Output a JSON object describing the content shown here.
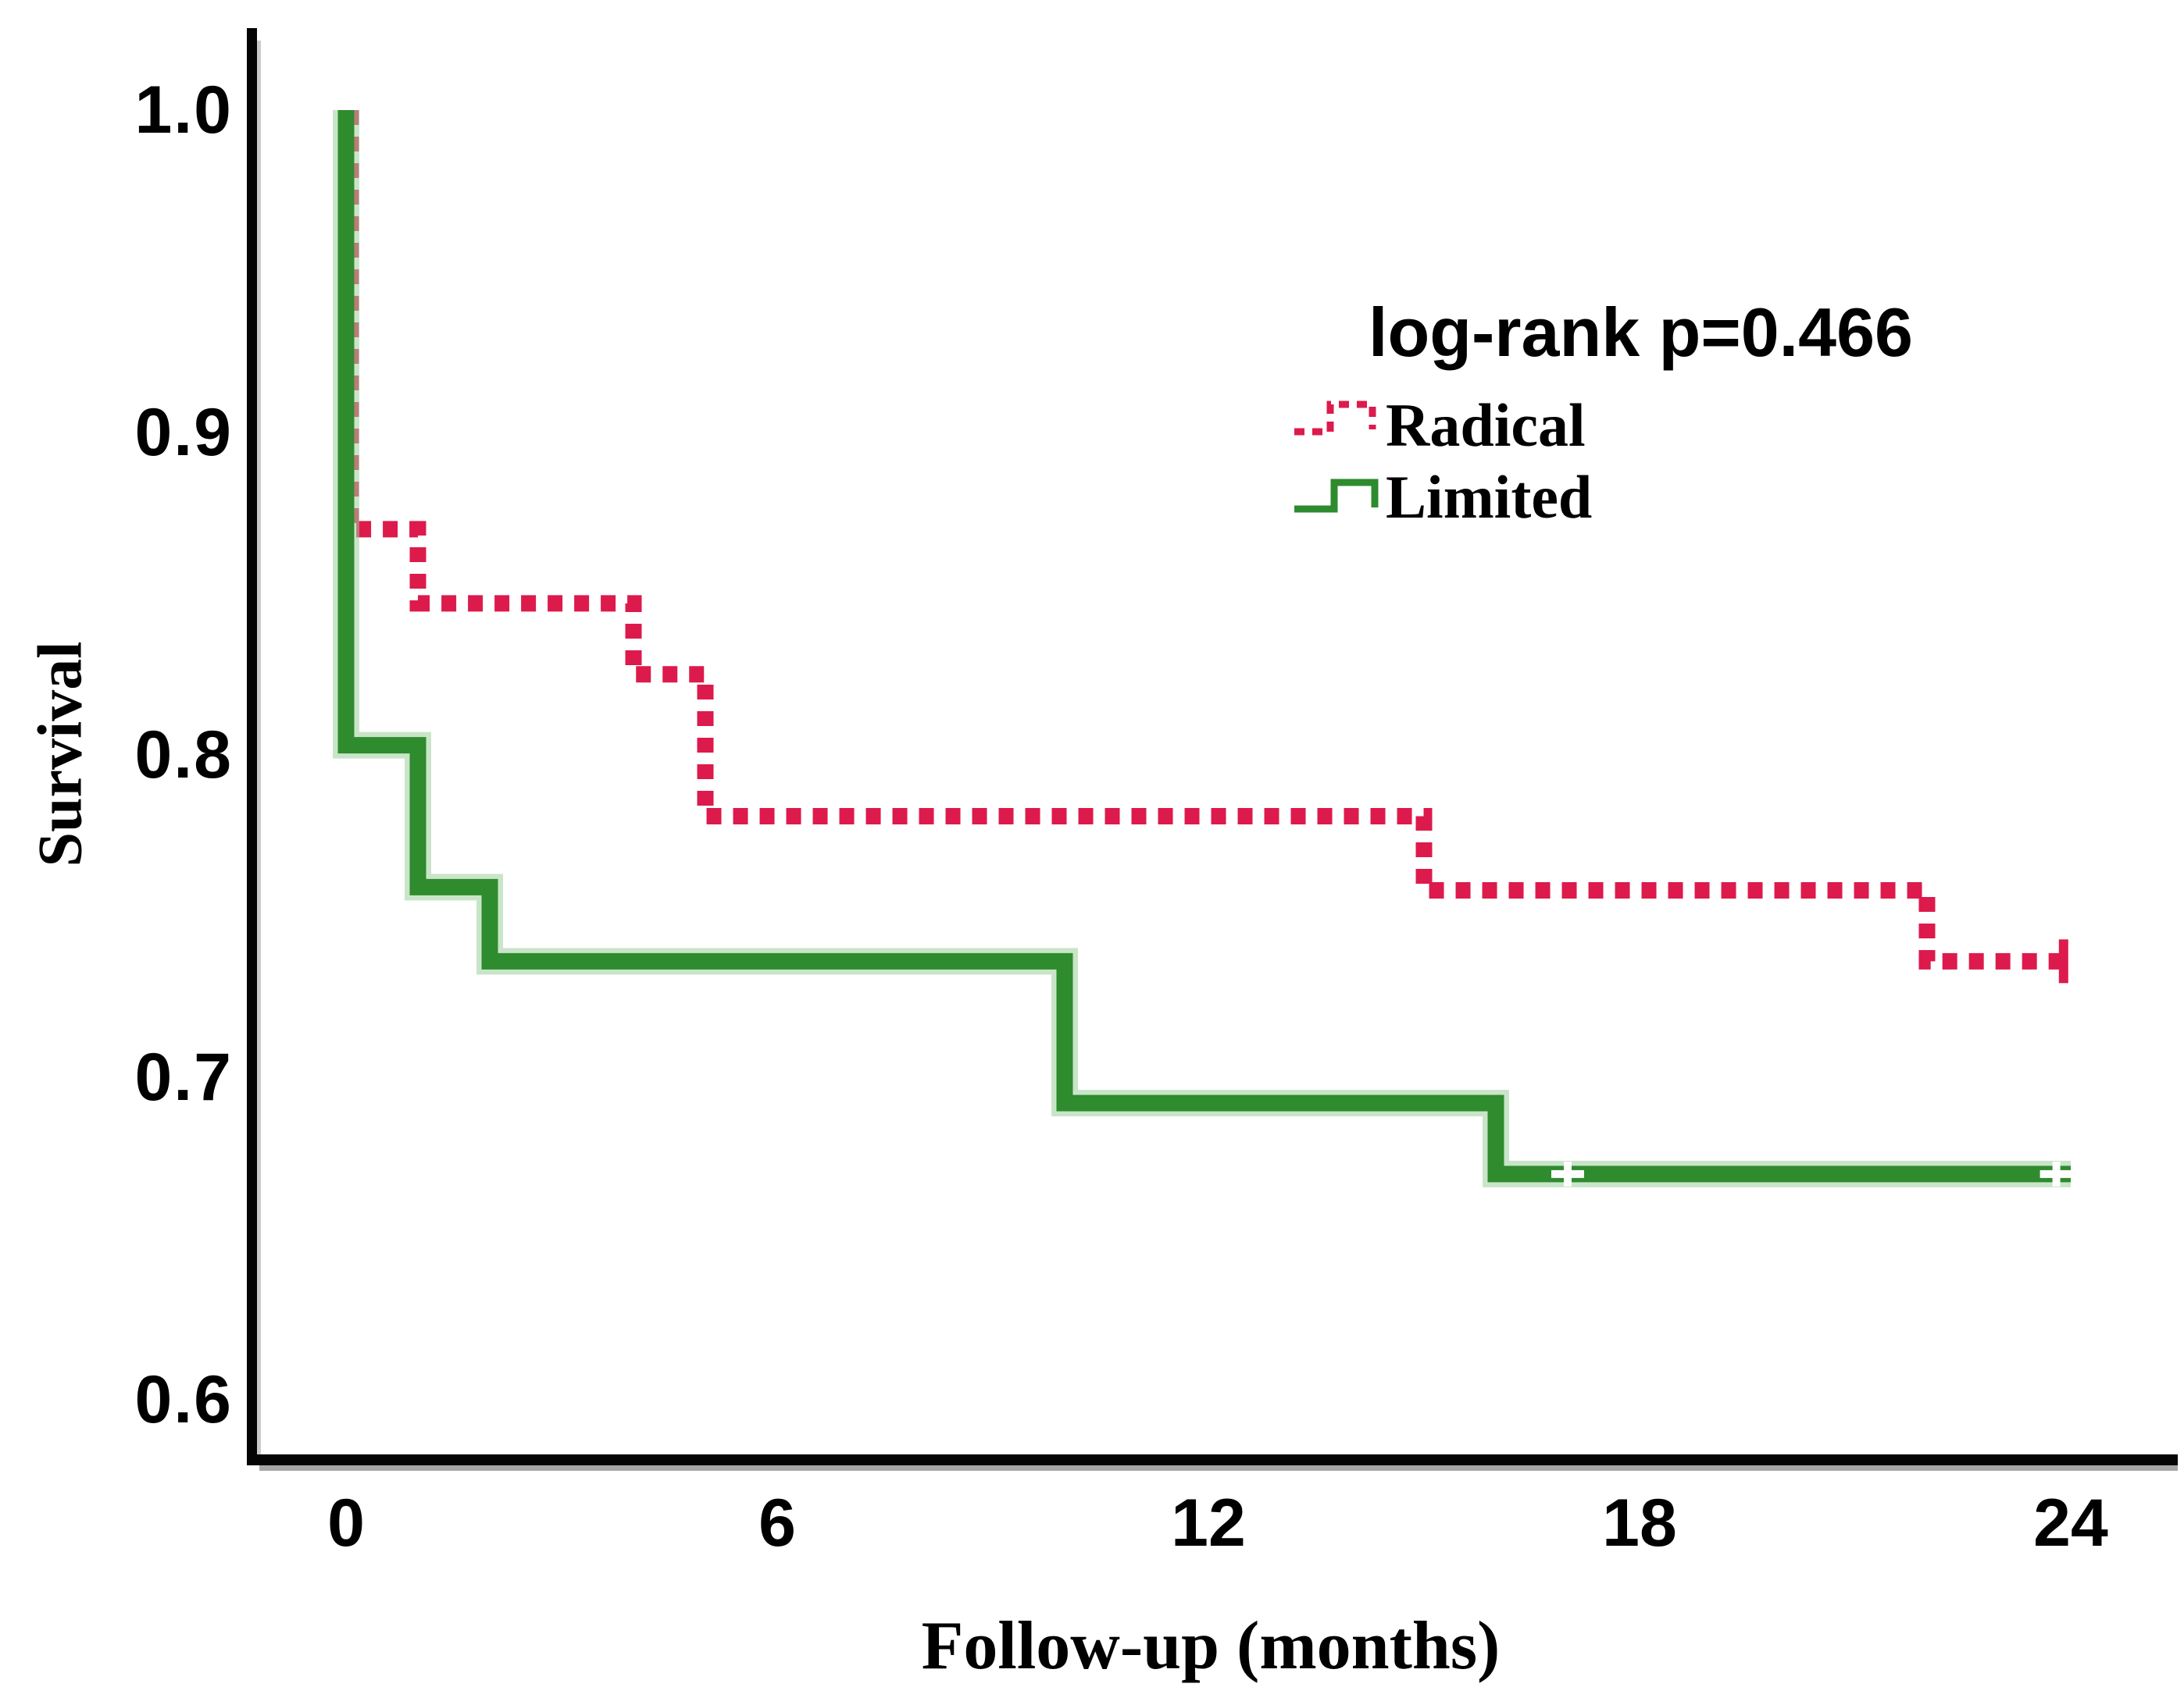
{
  "figure": {
    "background": "#ffffff",
    "annotation": "log-rank p=0.466",
    "axis_color": "#000000",
    "censor_mark_color_on_solid": "#ffffff"
  },
  "chart_data": {
    "type": "line",
    "subtype": "kaplan_meier_step",
    "title": "",
    "xlabel": "Follow-up (months)",
    "ylabel": "Survival",
    "xlim": [
      0,
      24
    ],
    "ylim": [
      0.57,
      1.03
    ],
    "xticks": [
      0,
      6,
      12,
      18,
      24
    ],
    "yticks": [
      1.0,
      0.9,
      0.8,
      0.7,
      0.6
    ],
    "xtick_labels": [
      "0",
      "6",
      "12",
      "18",
      "24"
    ],
    "ytick_labels": [
      "1.0",
      "0.9",
      "0.8",
      "0.7",
      "0.6"
    ],
    "grid": false,
    "legend_position": "upper-right-inside",
    "annotation": "log-rank p=0.466",
    "series": [
      {
        "name": "Radical",
        "color": "#dd1a4c",
        "style": "dotted",
        "censor_style": "tick",
        "points": [
          [
            0,
            1.0
          ],
          [
            0,
            0.87
          ],
          [
            1,
            0.87
          ],
          [
            1,
            0.847
          ],
          [
            4,
            0.847
          ],
          [
            4,
            0.825
          ],
          [
            5,
            0.825
          ],
          [
            5,
            0.781
          ],
          [
            15,
            0.781
          ],
          [
            15,
            0.758
          ],
          [
            22,
            0.758
          ],
          [
            22,
            0.736
          ],
          [
            24,
            0.736
          ]
        ],
        "censored": [
          [
            23.9,
            0.736
          ]
        ]
      },
      {
        "name": "Limited",
        "color": "#2e8b2e",
        "halo_color": "#9ccf9c",
        "style": "solid",
        "censor_style": "plus",
        "points": [
          [
            0,
            1.0
          ],
          [
            0,
            0.803
          ],
          [
            1,
            0.803
          ],
          [
            1,
            0.759
          ],
          [
            2,
            0.759
          ],
          [
            2,
            0.736
          ],
          [
            10,
            0.736
          ],
          [
            10,
            0.692
          ],
          [
            16,
            0.692
          ],
          [
            16,
            0.67
          ],
          [
            24,
            0.67
          ]
        ],
        "censored": [
          [
            17,
            0.67
          ],
          [
            23.8,
            0.67
          ]
        ]
      }
    ]
  }
}
